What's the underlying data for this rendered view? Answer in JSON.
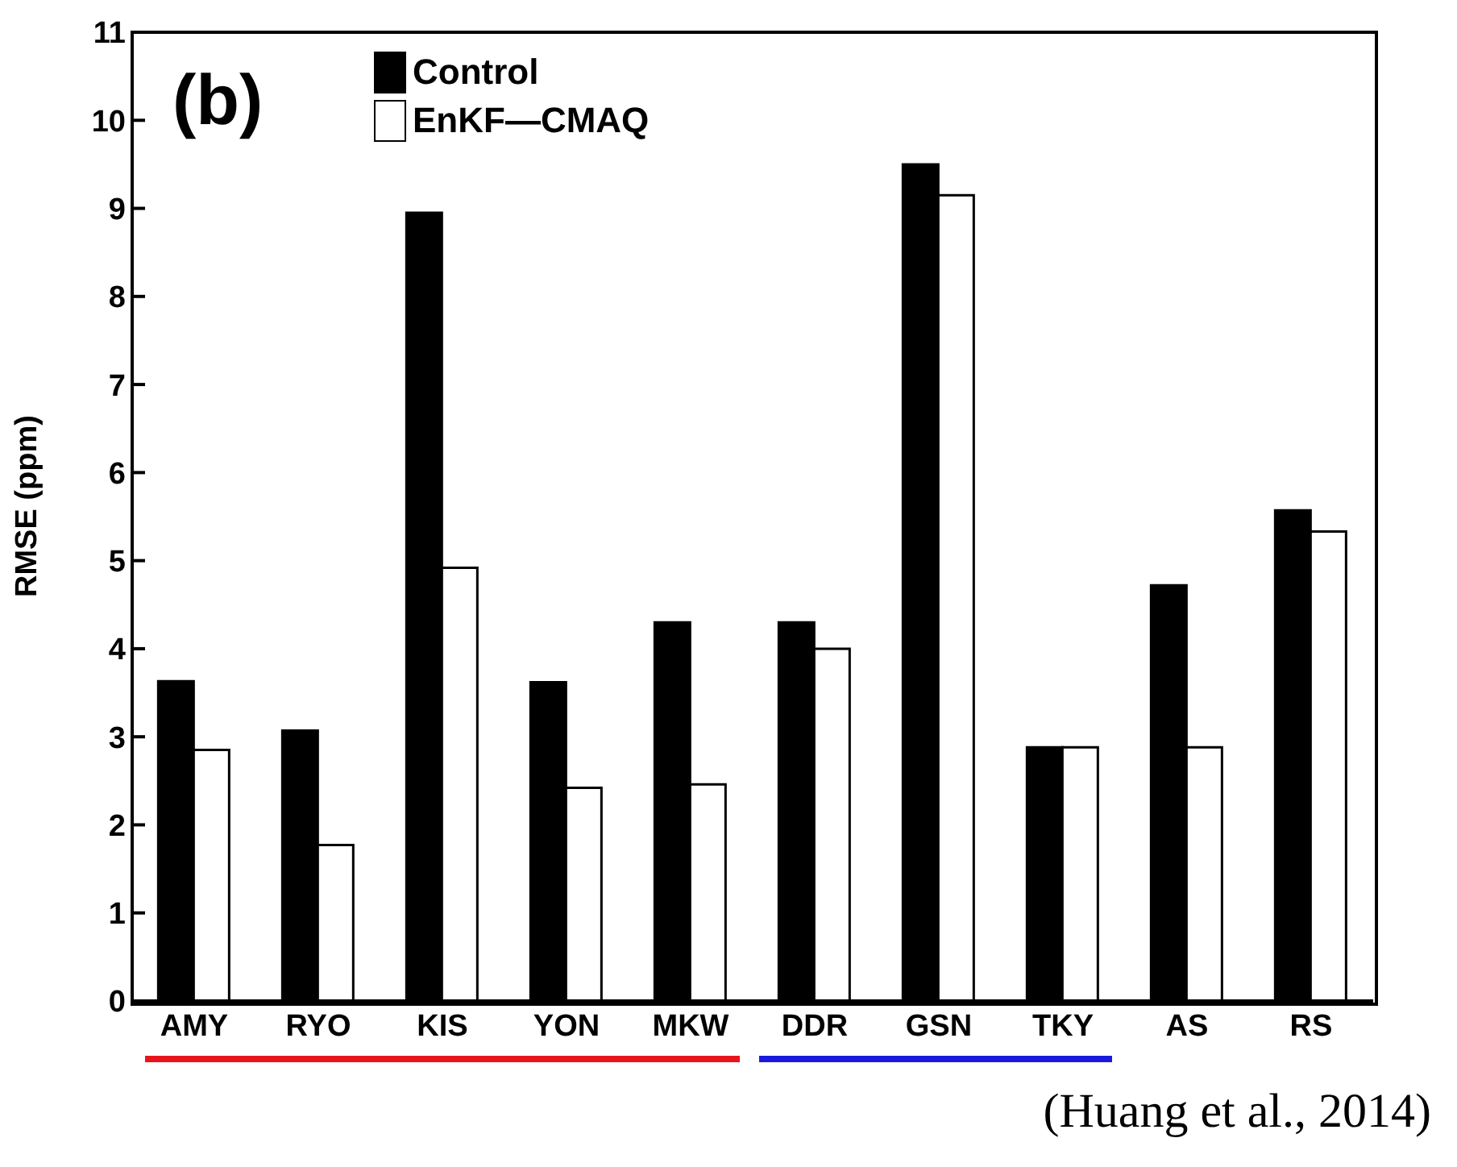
{
  "chart_data": {
    "type": "bar",
    "ylabel": "RMSE (ppm)",
    "categories": [
      "AMY",
      "RYO",
      "KIS",
      "YON",
      "MKW",
      "DDR",
      "GSN",
      "TKY",
      "AS",
      "RS"
    ],
    "series": [
      {
        "name": "Control",
        "color": "#000000",
        "values": [
          3.63,
          3.07,
          8.95,
          3.62,
          4.3,
          4.3,
          9.5,
          2.88,
          4.72,
          5.57
        ]
      },
      {
        "name": "EnKF—CMAQ",
        "color": "#ffffff",
        "values": [
          2.85,
          1.77,
          4.92,
          2.42,
          2.46,
          4.0,
          9.15,
          2.88,
          2.88,
          5.33
        ]
      }
    ],
    "ylim": [
      0,
      11
    ],
    "yticks": [
      0,
      1,
      2,
      3,
      4,
      5,
      6,
      7,
      8,
      9,
      10,
      11
    ],
    "grid": false,
    "legend": "top left",
    "annotations": [
      "(b)",
      "(Huang et al., 2014)"
    ]
  }
}
